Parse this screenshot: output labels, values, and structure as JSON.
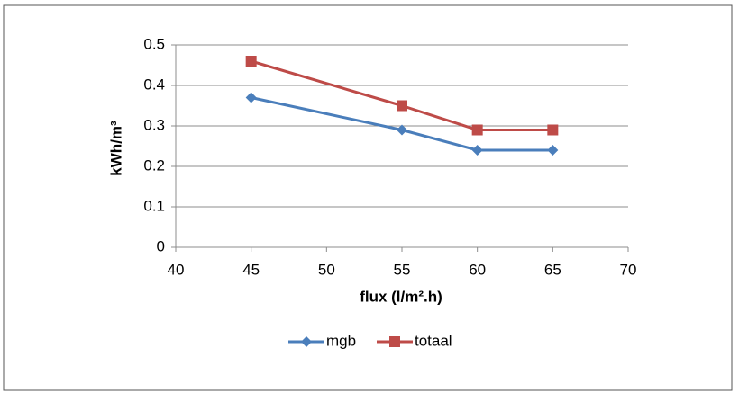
{
  "chart_data": {
    "type": "line",
    "x_label": "flux (l/m².h)",
    "y_label": "kWh/m³",
    "x": [
      45,
      55,
      60,
      65
    ],
    "series": [
      {
        "name": "mgb",
        "color": "#4a7ebb",
        "marker": "diamond",
        "values": [
          0.37,
          0.29,
          0.24,
          0.24
        ]
      },
      {
        "name": "totaal",
        "color": "#be4b48",
        "marker": "square",
        "values": [
          0.46,
          0.35,
          0.29,
          0.29
        ]
      }
    ],
    "xlim": [
      40,
      70
    ],
    "xticks": [
      40,
      45,
      50,
      55,
      60,
      65,
      70
    ],
    "ylim": [
      0,
      0.5
    ],
    "yticks": [
      0,
      0.1,
      0.2,
      0.3,
      0.4,
      0.5
    ],
    "grid": true,
    "legend": "bottom"
  }
}
